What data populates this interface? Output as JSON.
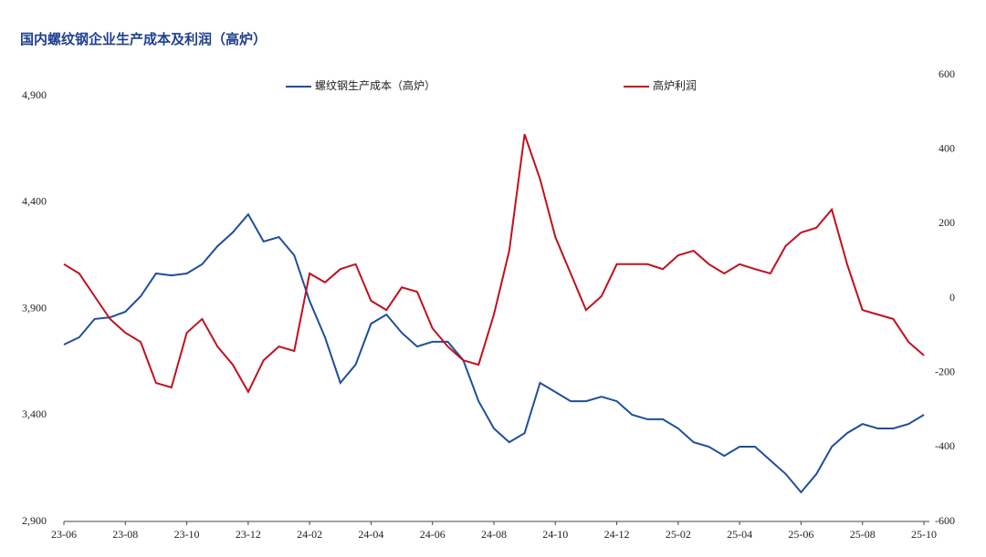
{
  "chart_data": {
    "type": "line",
    "title": "国内螺纹钢企业生产成本及利润（高炉）",
    "categories": [
      "23-06",
      null,
      null,
      null,
      "23-08",
      null,
      null,
      null,
      "23-10",
      null,
      null,
      null,
      "23-12",
      null,
      null,
      null,
      "24-02",
      null,
      null,
      null,
      "24-04",
      null,
      null,
      null,
      "24-06",
      null,
      null,
      null,
      "24-08",
      null,
      null,
      null,
      "24-10",
      null,
      null,
      null,
      "24-12",
      null,
      null,
      null,
      "25-02",
      null,
      null,
      null,
      "25-04",
      null,
      null,
      null,
      "25-06",
      null,
      null,
      null,
      "25-08",
      null,
      null,
      null,
      "25-10"
    ],
    "series": [
      {
        "name": "螺纹钢生产成本（高炉）",
        "color": "#1f4e9c",
        "axis": "y",
        "values": [
          3731,
          3765,
          3851,
          3859,
          3885,
          3958,
          4065,
          4056,
          4065,
          4108,
          4193,
          4258,
          4343,
          4215,
          4236,
          4150,
          3936,
          3765,
          3551,
          3637,
          3829,
          3872,
          3786,
          3722,
          3744,
          3744,
          3658,
          3465,
          3337,
          3272,
          3315,
          3551,
          3508,
          3465,
          3465,
          3486,
          3465,
          3401,
          3380,
          3380,
          3337,
          3272,
          3251,
          3208,
          3251,
          3251,
          3187,
          3123,
          3037,
          3123,
          3251,
          3315,
          3358,
          3337,
          3337,
          3358,
          3401
        ]
      },
      {
        "name": "高炉利润",
        "color": "#c0101e",
        "axis": "y2",
        "values": [
          91,
          66,
          5,
          -56,
          -93,
          -118,
          -228,
          -240,
          -93,
          -56,
          -130,
          -179,
          -252,
          -167,
          -130,
          -142,
          66,
          42,
          78,
          91,
          -7,
          -32,
          29,
          17,
          -81,
          -130,
          -167,
          -179,
          -44,
          127,
          440,
          320,
          164,
          66,
          -32,
          5,
          91,
          91,
          91,
          78,
          115,
          127,
          91,
          66,
          91,
          78,
          66,
          140,
          176,
          189,
          238,
          91,
          -32,
          -44,
          -56,
          -118,
          -154
        ]
      }
    ],
    "ylim": [
      2900,
      4900
    ],
    "yticks": [
      {
        "value": 2900,
        "label": "2,900"
      },
      {
        "value": 3400,
        "label": "3,400"
      },
      {
        "value": 3900,
        "label": "3,900"
      },
      {
        "value": 4400,
        "label": "4,400"
      },
      {
        "value": 4900,
        "label": "4,900"
      }
    ],
    "y2lim": [
      -600,
      600
    ],
    "y2ticks": [
      -600,
      -400,
      -200,
      0,
      200,
      400,
      600
    ],
    "grid": false
  }
}
